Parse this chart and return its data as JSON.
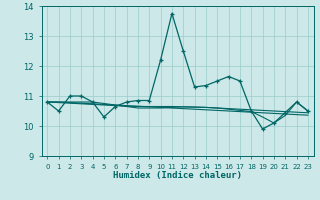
{
  "xlabel": "Humidex (Indice chaleur)",
  "background_color": "#cce8e8",
  "grid_color": "#99cccc",
  "line_color": "#006666",
  "xlim": [
    -0.5,
    23.5
  ],
  "ylim": [
    9.0,
    14.0
  ],
  "yticks": [
    9,
    10,
    11,
    12,
    13,
    14
  ],
  "xticks": [
    0,
    1,
    2,
    3,
    4,
    5,
    6,
    7,
    8,
    9,
    10,
    11,
    12,
    13,
    14,
    15,
    16,
    17,
    18,
    19,
    20,
    21,
    22,
    23
  ],
  "series0": [
    10.8,
    10.5,
    11.0,
    11.0,
    10.8,
    10.3,
    10.65,
    10.8,
    10.85,
    10.85,
    12.2,
    13.75,
    12.5,
    11.3,
    11.35,
    11.5,
    11.65,
    11.5,
    10.5,
    9.9,
    10.1,
    10.45,
    10.8,
    10.5
  ],
  "series1": [
    10.8,
    10.8,
    10.78,
    10.76,
    10.74,
    10.72,
    10.7,
    10.68,
    10.66,
    10.64,
    10.62,
    10.6,
    10.58,
    10.56,
    10.54,
    10.52,
    10.5,
    10.48,
    10.46,
    10.44,
    10.42,
    10.4,
    10.38,
    10.36
  ],
  "series2": [
    10.8,
    10.78,
    10.76,
    10.74,
    10.72,
    10.7,
    10.68,
    10.66,
    10.65,
    10.65,
    10.65,
    10.65,
    10.64,
    10.63,
    10.62,
    10.6,
    10.58,
    10.56,
    10.54,
    10.52,
    10.5,
    10.48,
    10.46,
    10.44
  ],
  "series3": [
    10.8,
    10.8,
    10.8,
    10.8,
    10.8,
    10.75,
    10.7,
    10.65,
    10.6,
    10.6,
    10.6,
    10.62,
    10.64,
    10.63,
    10.62,
    10.6,
    10.56,
    10.52,
    10.48,
    10.3,
    10.1,
    10.35,
    10.8,
    10.5
  ]
}
